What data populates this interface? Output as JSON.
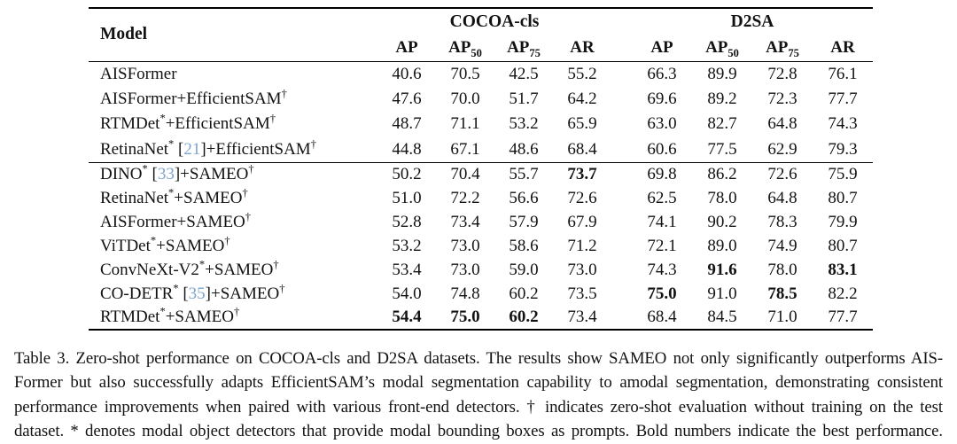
{
  "colors": {
    "citation_blue": "#7DA5CF",
    "text": "#121212",
    "background": "#ffffff"
  },
  "table": {
    "model_header": "Model",
    "groups": [
      {
        "label": "COCOA-cls",
        "columns": [
          {
            "base": "AP",
            "sub": ""
          },
          {
            "base": "AP",
            "sub": "50"
          },
          {
            "base": "AP",
            "sub": "75"
          },
          {
            "base": "AR",
            "sub": ""
          }
        ]
      },
      {
        "label": "D2SA",
        "columns": [
          {
            "base": "AP",
            "sub": ""
          },
          {
            "base": "AP",
            "sub": "50"
          },
          {
            "base": "AP",
            "sub": "75"
          },
          {
            "base": "AR",
            "sub": ""
          }
        ]
      }
    ],
    "row_groups": [
      {
        "rows": [
          {
            "model": [
              {
                "t": "text",
                "v": "AISFormer"
              }
            ],
            "values": [
              "40.6",
              "70.5",
              "42.5",
              "55.2",
              "66.3",
              "89.9",
              "72.8",
              "76.1"
            ],
            "bold": []
          },
          {
            "model": [
              {
                "t": "text",
                "v": "AISFormer+EfficientSAM"
              },
              {
                "t": "sup",
                "v": "†"
              }
            ],
            "values": [
              "47.6",
              "70.0",
              "51.7",
              "64.2",
              "69.6",
              "89.2",
              "72.3",
              "77.7"
            ],
            "bold": []
          },
          {
            "model": [
              {
                "t": "text",
                "v": "RTMDet"
              },
              {
                "t": "sup",
                "v": "*"
              },
              {
                "t": "text",
                "v": "+EfficientSAM"
              },
              {
                "t": "sup",
                "v": "†"
              }
            ],
            "values": [
              "48.7",
              "71.1",
              "53.2",
              "65.9",
              "63.0",
              "82.7",
              "64.8",
              "74.3"
            ],
            "bold": []
          },
          {
            "model": [
              {
                "t": "text",
                "v": "RetinaNet"
              },
              {
                "t": "sup",
                "v": "*"
              },
              {
                "t": "text",
                "v": " ["
              },
              {
                "t": "cite",
                "v": "21"
              },
              {
                "t": "text",
                "v": "]+EfficientSAM"
              },
              {
                "t": "sup",
                "v": "†"
              }
            ],
            "values": [
              "44.8",
              "67.1",
              "48.6",
              "68.4",
              "60.6",
              "77.5",
              "62.9",
              "79.3"
            ],
            "bold": []
          }
        ]
      },
      {
        "rows": [
          {
            "model": [
              {
                "t": "text",
                "v": "DINO"
              },
              {
                "t": "sup",
                "v": "*"
              },
              {
                "t": "text",
                "v": " ["
              },
              {
                "t": "cite",
                "v": "33"
              },
              {
                "t": "text",
                "v": "]+SAMEO"
              },
              {
                "t": "sup",
                "v": "†"
              }
            ],
            "values": [
              "50.2",
              "70.4",
              "55.7",
              "73.7",
              "69.8",
              "86.2",
              "72.6",
              "75.9"
            ],
            "bold": [
              3
            ]
          },
          {
            "model": [
              {
                "t": "text",
                "v": "RetinaNet"
              },
              {
                "t": "sup",
                "v": "*"
              },
              {
                "t": "text",
                "v": "+SAMEO"
              },
              {
                "t": "sup",
                "v": "†"
              }
            ],
            "values": [
              "51.0",
              "72.2",
              "56.6",
              "72.6",
              "62.5",
              "78.0",
              "64.8",
              "80.7"
            ],
            "bold": []
          },
          {
            "model": [
              {
                "t": "text",
                "v": "AISFormer+SAMEO"
              },
              {
                "t": "sup",
                "v": "†"
              }
            ],
            "values": [
              "52.8",
              "73.4",
              "57.9",
              "67.9",
              "74.1",
              "90.2",
              "78.3",
              "79.9"
            ],
            "bold": []
          },
          {
            "model": [
              {
                "t": "text",
                "v": "ViTDet"
              },
              {
                "t": "sup",
                "v": "*"
              },
              {
                "t": "text",
                "v": "+SAMEO"
              },
              {
                "t": "sup",
                "v": "†"
              }
            ],
            "values": [
              "53.2",
              "73.0",
              "58.6",
              "71.2",
              "72.1",
              "89.0",
              "74.9",
              "80.7"
            ],
            "bold": []
          },
          {
            "model": [
              {
                "t": "text",
                "v": "ConvNeXt-V2"
              },
              {
                "t": "sup",
                "v": "*"
              },
              {
                "t": "text",
                "v": "+SAMEO"
              },
              {
                "t": "sup",
                "v": "†"
              }
            ],
            "values": [
              "53.4",
              "73.0",
              "59.0",
              "73.0",
              "74.3",
              "91.6",
              "78.0",
              "83.1"
            ],
            "bold": [
              5,
              7
            ]
          },
          {
            "model": [
              {
                "t": "text",
                "v": "CO-DETR"
              },
              {
                "t": "sup",
                "v": "*"
              },
              {
                "t": "text",
                "v": " ["
              },
              {
                "t": "cite",
                "v": "35"
              },
              {
                "t": "text",
                "v": "]+SAMEO"
              },
              {
                "t": "sup",
                "v": "†"
              }
            ],
            "values": [
              "54.0",
              "74.8",
              "60.2",
              "73.5",
              "75.0",
              "91.0",
              "78.5",
              "82.2"
            ],
            "bold": [
              4,
              6
            ]
          },
          {
            "model": [
              {
                "t": "text",
                "v": "RTMDet"
              },
              {
                "t": "sup",
                "v": "*"
              },
              {
                "t": "text",
                "v": "+SAMEO"
              },
              {
                "t": "sup",
                "v": "†"
              }
            ],
            "values": [
              "54.4",
              "75.0",
              "60.2",
              "73.4",
              "68.4",
              "84.5",
              "71.0",
              "77.7"
            ],
            "bold": [
              0,
              1,
              2
            ]
          }
        ]
      }
    ]
  },
  "caption": {
    "lines": [
      "Table 3. Zero-shot performance on COCOA-cls and D2SA datasets. The results show SAMEO not only significantly outperforms AIS-",
      "Former but also successfully adapts EfficientSAM’s modal segmentation capability to amodal segmentation, demonstrating consistent",
      "performance improvements when paired with various front-end detectors. † indicates zero-shot evaluation without training on the test",
      "dataset. * denotes modal object detectors that provide modal bounding boxes as prompts. Bold numbers indicate the best performance."
    ]
  }
}
